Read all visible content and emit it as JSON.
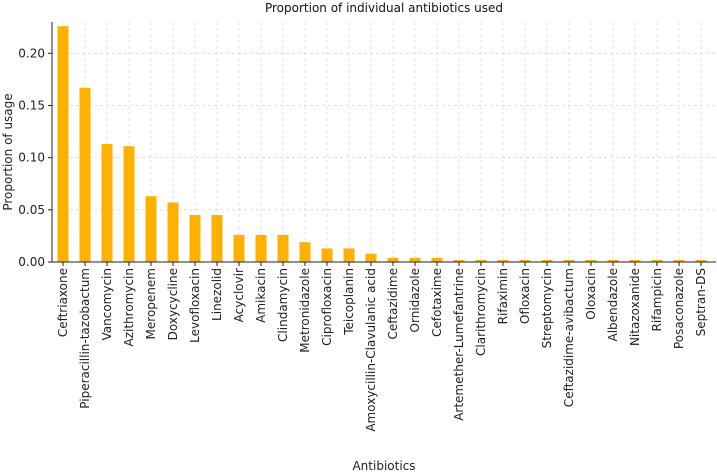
{
  "chart_data": {
    "type": "bar",
    "title": "Proportion of individual antibiotics used",
    "xlabel": "Antibiotics",
    "ylabel": "Proportion of usage",
    "ylim": [
      0,
      0.23
    ],
    "yticks": [
      0.0,
      0.05,
      0.1,
      0.15,
      0.2
    ],
    "ytick_labels": [
      "0.00",
      "0.05",
      "0.10",
      "0.15",
      "0.20"
    ],
    "grid": true,
    "bar_color": "#FFB000",
    "categories": [
      "Ceftriaxone",
      "Piperacillin-tazobactum",
      "Vancomycin",
      "Azithromycin",
      "Meropenem",
      "Doxycycline",
      "Levofloxacin",
      "Linezolid",
      "Acyclovir",
      "Amikacin",
      "Clindamycin",
      "Metronidazole",
      "Ciprofloxacin",
      "Teicoplanin",
      "Amoxycillin-Clavulanic acid",
      "Ceftazidime",
      "Ornidazole",
      "Cefotaxime",
      "Artemether-Lumefantrine",
      "Clarithromycin",
      "Rifaximin",
      "Ofloxacin",
      "Streptomycin",
      "Ceftazidime-avibactum",
      "Oloxacin",
      "Albendazole",
      "Nitazoxanide",
      "Rifampicin",
      "Posaconazole",
      "Septran-DS"
    ],
    "values": [
      0.226,
      0.167,
      0.113,
      0.111,
      0.063,
      0.057,
      0.045,
      0.045,
      0.026,
      0.026,
      0.026,
      0.019,
      0.013,
      0.013,
      0.008,
      0.004,
      0.004,
      0.004,
      0.002,
      0.002,
      0.002,
      0.002,
      0.002,
      0.002,
      0.002,
      0.002,
      0.002,
      0.002,
      0.002,
      0.002
    ]
  }
}
